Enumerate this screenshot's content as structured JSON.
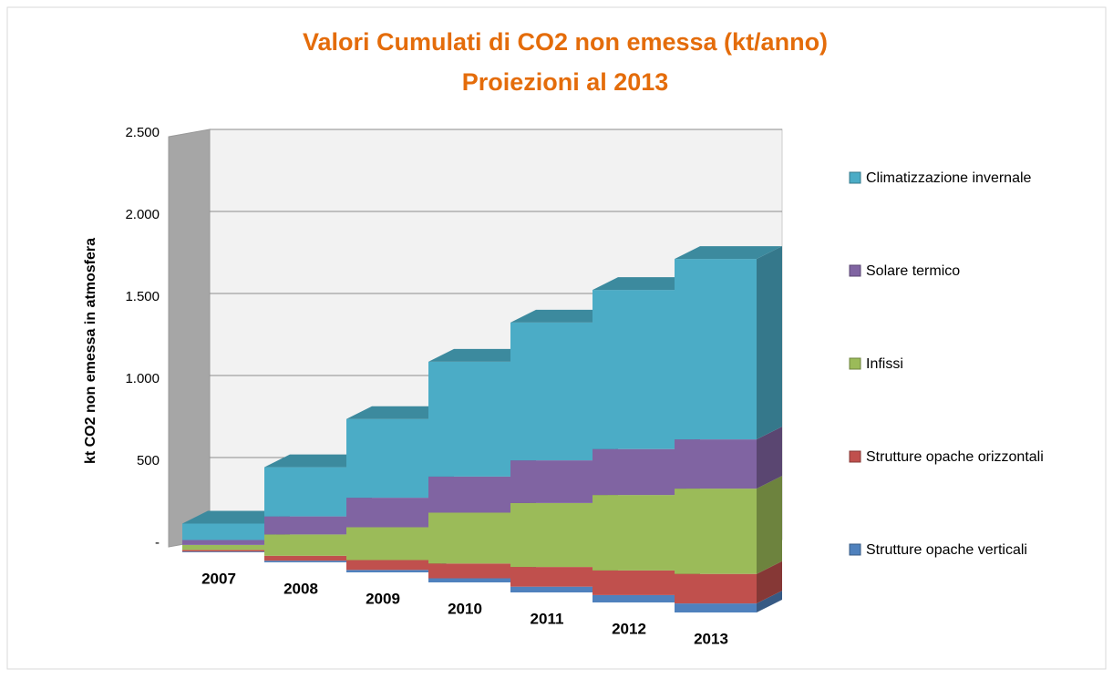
{
  "chart_data": {
    "type": "bar3d_stacked",
    "title": "Valori Cumulati di CO2 non emessa (kt/anno)",
    "subtitle": "Proiezioni al 2013",
    "y_label": "kt CO2 non emessa in atmosfera",
    "categories": [
      "2007",
      "2008",
      "2009",
      "2010",
      "2011",
      "2012",
      "2013"
    ],
    "series": [
      {
        "name": "Strutture opache verticali",
        "color": "#4f81bd",
        "values": [
          5,
          10,
          15,
          25,
          35,
          45,
          55
        ]
      },
      {
        "name": "Strutture opache orizzontali",
        "color": "#c0504d",
        "values": [
          10,
          30,
          60,
          90,
          120,
          150,
          180
        ]
      },
      {
        "name": "Infissi",
        "color": "#9bbb59",
        "values": [
          30,
          130,
          200,
          310,
          390,
          460,
          520
        ]
      },
      {
        "name": "Solare termico",
        "color": "#8064a2",
        "values": [
          30,
          110,
          180,
          220,
          260,
          280,
          300
        ]
      },
      {
        "name": "Climatizzazione invernale",
        "color": "#4bacc6",
        "values": [
          100,
          300,
          480,
          700,
          840,
          970,
          1100
        ]
      }
    ],
    "ylim": [
      0,
      2500
    ],
    "yticks": [
      {
        "value": 0,
        "label": "-"
      },
      500,
      {
        "value": 1000,
        "label": "1.000"
      },
      {
        "value": 1500,
        "label": "1.500"
      },
      {
        "value": 2000,
        "label": "2.000"
      },
      {
        "value": 2500,
        "label": "2.500"
      }
    ],
    "grid": true,
    "legend": "right"
  }
}
